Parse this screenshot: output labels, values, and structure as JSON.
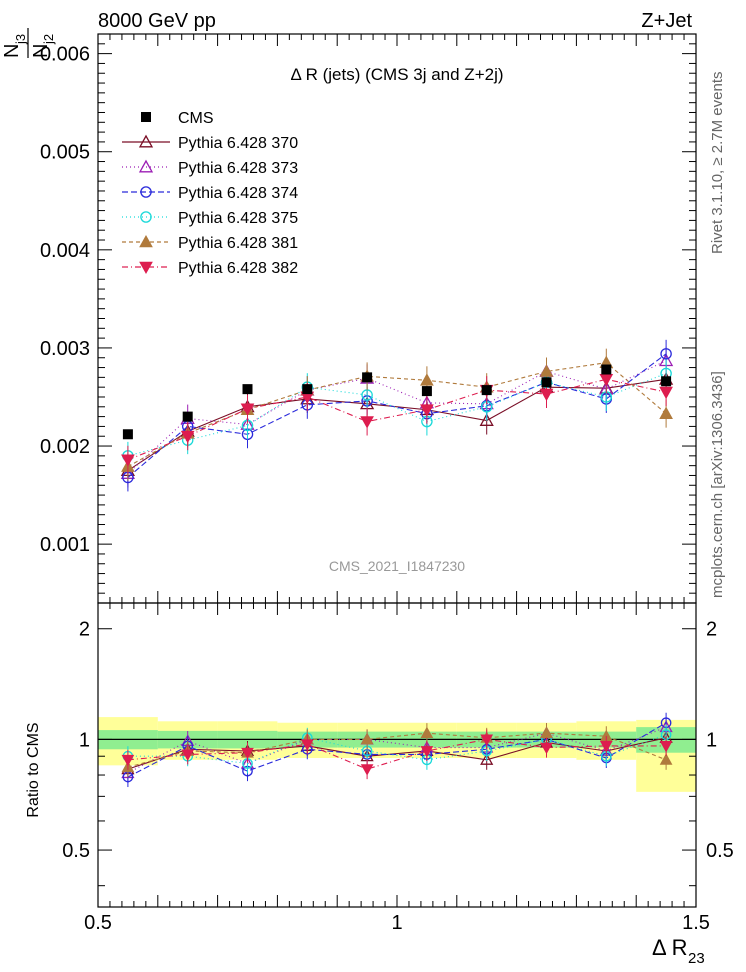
{
  "header": {
    "left": "8000 GeV pp",
    "right": "Z+Jet"
  },
  "side_text": {
    "rivet": "Rivet 3.1.10, ≥ 2.7M events",
    "mcplots": "mcplots.cern.ch [arXiv:1306.3436]"
  },
  "chart_data": {
    "type": "scatter",
    "title": "Δ R (jets) (CMS 3j and Z+2j)",
    "watermark": "CMS_2021_I1847230",
    "ylabel_main_parts": {
      "n1": "N",
      "n1_sub": "j3",
      "n2": "N",
      "n2_sub": "j2"
    },
    "ylabel_ratio": "Ratio to CMS",
    "xlabel_parts": {
      "main": "Δ R",
      "sub": "23"
    },
    "xlim": [
      0.5,
      1.5
    ],
    "ylim_main": [
      0.0004,
      0.0062
    ],
    "ylim_ratio": [
      0.35,
      2.35
    ],
    "main_yticks": [
      {
        "v": 0.001,
        "label": "0.001"
      },
      {
        "v": 0.002,
        "label": "0.002"
      },
      {
        "v": 0.003,
        "label": "0.003"
      },
      {
        "v": 0.004,
        "label": "0.004"
      },
      {
        "v": 0.005,
        "label": "0.005"
      },
      {
        "v": 0.006,
        "label": "0.006"
      }
    ],
    "ratio_yticks": [
      {
        "v": 0.5,
        "label": "0.5"
      },
      {
        "v": 1,
        "label": "1"
      },
      {
        "v": 2,
        "label": "2"
      }
    ],
    "xticks": [
      {
        "v": 0.5,
        "label": "0.5"
      },
      {
        "v": 1.0,
        "label": "1"
      },
      {
        "v": 1.5,
        "label": "1.5"
      }
    ],
    "x": [
      0.55,
      0.65,
      0.75,
      0.85,
      0.95,
      1.05,
      1.15,
      1.25,
      1.35,
      1.45
    ],
    "bin_edges": [
      0.5,
      0.6,
      0.7,
      0.8,
      0.9,
      1.0,
      1.1,
      1.2,
      1.3,
      1.4,
      1.5
    ],
    "data": {
      "name": "CMS",
      "values": [
        0.00212,
        0.0023,
        0.00258,
        0.00258,
        0.0027,
        0.00256,
        0.00257,
        0.00265,
        0.00278,
        0.00266
      ],
      "stat_band": [
        0.06,
        0.055,
        0.055,
        0.05,
        0.05,
        0.05,
        0.05,
        0.05,
        0.05,
        0.08
      ],
      "total_band": [
        0.15,
        0.12,
        0.12,
        0.11,
        0.11,
        0.11,
        0.11,
        0.11,
        0.12,
        0.13
      ],
      "total_band_lower_last": 0.28
    },
    "series": [
      {
        "name": "Pythia 6.428 370",
        "color": "#7a0e26",
        "dash": "",
        "marker": "triangle-open",
        "connect": true,
        "values": [
          0.00175,
          0.00215,
          0.0024,
          0.00248,
          0.00243,
          0.00237,
          0.00226,
          0.0026,
          0.00259,
          0.00268
        ],
        "ratio": [
          0.83,
          0.94,
          0.93,
          0.96,
          0.9,
          0.93,
          0.88,
          0.98,
          0.93,
          1.01
        ]
      },
      {
        "name": "Pythia 6.428 373",
        "color": "#9c1fb5",
        "dash": "1,3",
        "marker": "triangle-open",
        "connect": true,
        "values": [
          0.00172,
          0.00228,
          0.00222,
          0.00257,
          0.00269,
          0.00244,
          0.00243,
          0.00276,
          0.00258,
          0.00287
        ],
        "ratio": [
          0.81,
          0.99,
          0.86,
          1.0,
          1.0,
          0.95,
          0.95,
          1.04,
          0.93,
          1.08
        ]
      },
      {
        "name": "Pythia 6.428 374",
        "color": "#2a2adb",
        "dash": "6,3",
        "marker": "circle-open",
        "connect": true,
        "values": [
          0.00168,
          0.0022,
          0.00212,
          0.00242,
          0.00246,
          0.00233,
          0.00241,
          0.00265,
          0.00248,
          0.00294
        ],
        "ratio": [
          0.79,
          0.96,
          0.82,
          0.94,
          0.91,
          0.91,
          0.94,
          1.0,
          0.89,
          1.11
        ]
      },
      {
        "name": "Pythia 6.428 375",
        "color": "#19d9d9",
        "dash": "1,3",
        "marker": "circle-open",
        "connect": true,
        "values": [
          0.0019,
          0.00206,
          0.00221,
          0.0026,
          0.00252,
          0.00225,
          0.0024,
          0.00265,
          0.0025,
          0.00274
        ],
        "ratio": [
          0.9,
          0.9,
          0.86,
          1.01,
          0.93,
          0.88,
          0.93,
          1.0,
          0.9,
          1.03
        ]
      },
      {
        "name": "Pythia 6.428 381",
        "color": "#b07a3c",
        "dash": "4,3",
        "marker": "triangle-filled",
        "connect": true,
        "values": [
          0.00179,
          0.00213,
          0.00237,
          0.00257,
          0.00271,
          0.00267,
          0.0026,
          0.00276,
          0.00285,
          0.00233
        ],
        "ratio": [
          0.84,
          0.93,
          0.92,
          1.0,
          1.0,
          1.04,
          1.01,
          1.04,
          1.02,
          0.88
        ]
      },
      {
        "name": "Pythia 6.428 382",
        "color": "#dd1d4f",
        "dash": "6,3,1,3",
        "marker": "triangle-down-filled",
        "connect": true,
        "values": [
          0.00186,
          0.0021,
          0.00238,
          0.0025,
          0.00225,
          0.00237,
          0.00257,
          0.00253,
          0.00268,
          0.00255
        ],
        "ratio": [
          0.88,
          0.91,
          0.92,
          0.97,
          0.83,
          0.93,
          1.0,
          0.95,
          0.96,
          0.96
        ]
      }
    ]
  }
}
